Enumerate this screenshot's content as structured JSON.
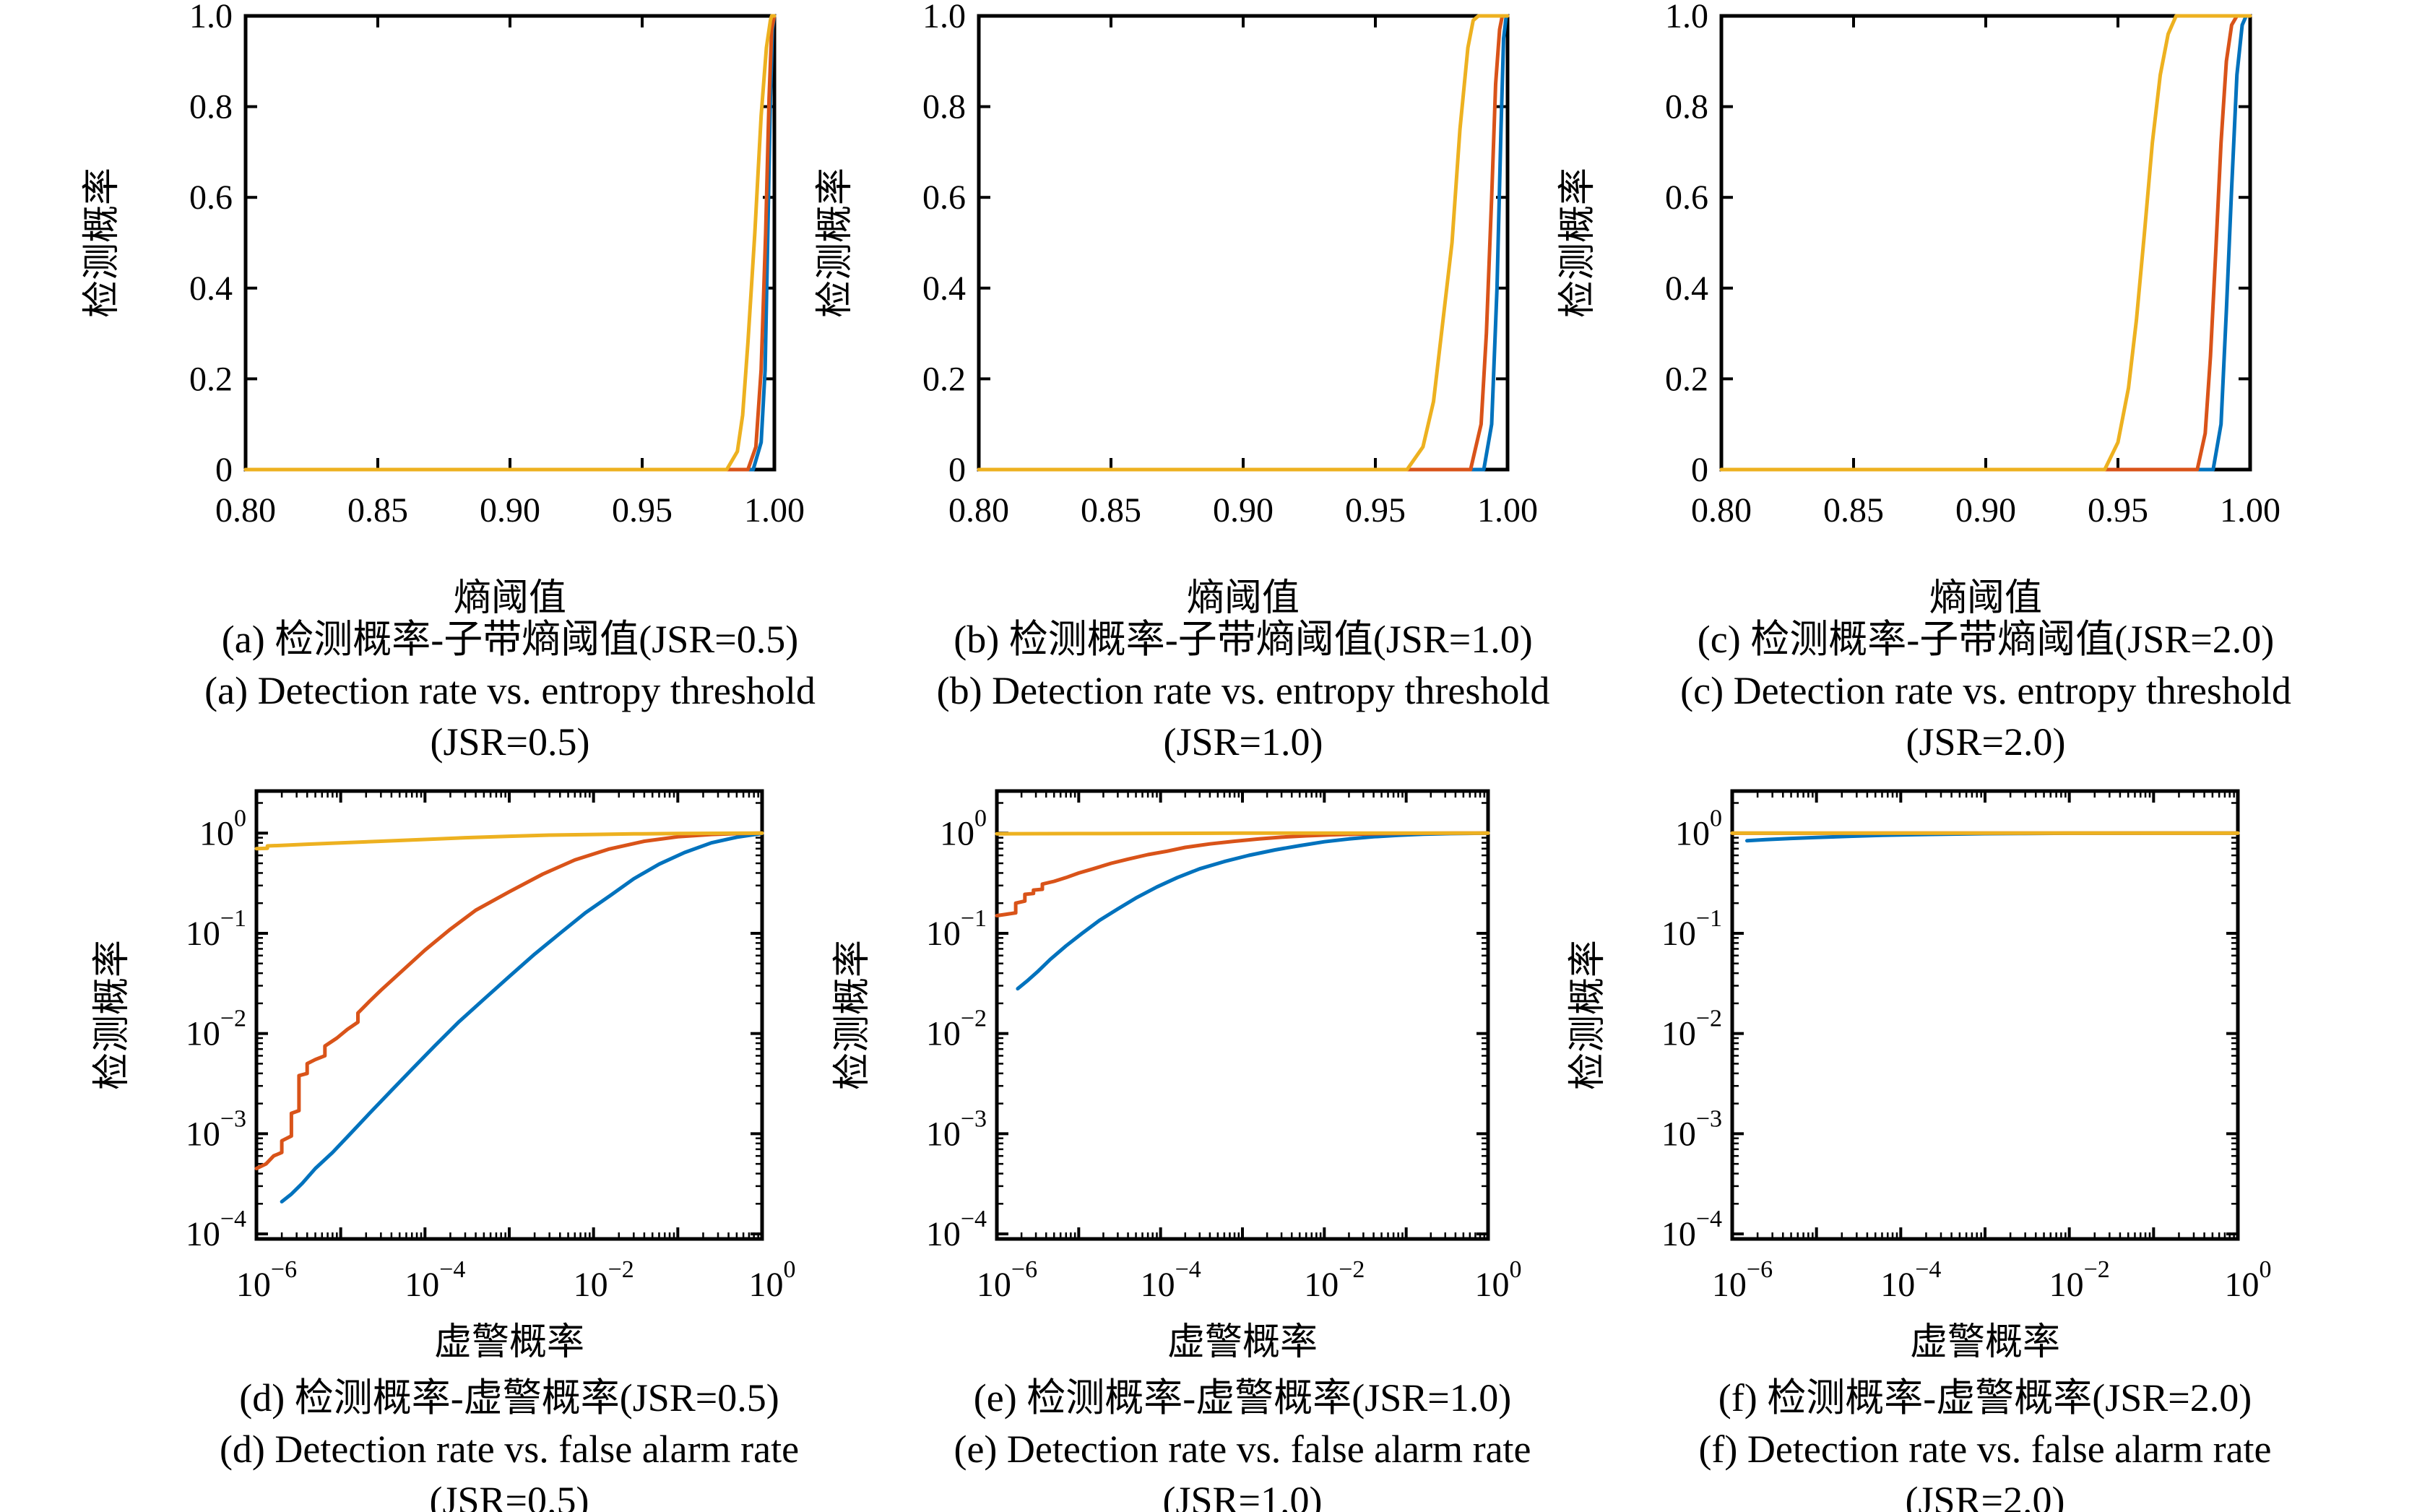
{
  "colors": {
    "series_blue": "#0072BD",
    "series_orange": "#D95319",
    "series_yellow": "#EDB120",
    "axis": "#000000",
    "background": "#ffffff"
  },
  "ylabel_shared": "检测概率",
  "chart_data": [
    {
      "id": "a",
      "type": "line",
      "xscale": "linear",
      "yscale": "linear",
      "title": "",
      "xlabel": "熵阈值",
      "ylabel": "检测概率",
      "xlim": [
        0.8,
        1.0
      ],
      "ylim": [
        0,
        1
      ],
      "xtick_labels": [
        "0.80",
        "0.85",
        "0.90",
        "0.95",
        "1.00"
      ],
      "xtick_values": [
        0.8,
        0.85,
        0.9,
        0.95,
        1.0
      ],
      "ytick_labels": [
        "0",
        "0.2",
        "0.4",
        "0.6",
        "0.8",
        "1.0"
      ],
      "ytick_values": [
        0,
        0.2,
        0.4,
        0.6,
        0.8,
        1.0
      ],
      "grid": false,
      "legend": "none",
      "caption_zh": "(a) 检测概率-子带熵阈值(JSR=0.5)",
      "caption_en": "(a) Detection rate vs. entropy threshold",
      "caption_jsr": "(JSR=0.5)",
      "series": [
        {
          "name": "series-blue",
          "color": "#0072BD",
          "x": [
            0.8,
            0.992,
            0.995,
            0.9965,
            0.9975,
            0.9985,
            0.9993,
            1.0
          ],
          "y": [
            0,
            0,
            0.06,
            0.22,
            0.52,
            0.82,
            0.97,
            1.0
          ]
        },
        {
          "name": "series-orange",
          "color": "#D95319",
          "x": [
            0.8,
            0.99,
            0.993,
            0.995,
            0.9967,
            0.998,
            0.999,
            1.0
          ],
          "y": [
            0,
            0,
            0.05,
            0.22,
            0.52,
            0.82,
            0.97,
            1.0
          ]
        },
        {
          "name": "series-yellow",
          "color": "#EDB120",
          "x": [
            0.8,
            0.982,
            0.986,
            0.988,
            0.99,
            0.9926,
            0.995,
            0.997,
            0.9985,
            0.999,
            1.0
          ],
          "y": [
            0,
            0,
            0.04,
            0.12,
            0.28,
            0.52,
            0.78,
            0.93,
            0.99,
            1.0,
            1.0
          ]
        }
      ]
    },
    {
      "id": "b",
      "type": "line",
      "xscale": "linear",
      "yscale": "linear",
      "title": "",
      "xlabel": "熵阈值",
      "ylabel": "检测概率",
      "xlim": [
        0.8,
        1.0
      ],
      "ylim": [
        0,
        1
      ],
      "xtick_labels": [
        "0.80",
        "0.85",
        "0.90",
        "0.95",
        "1.00"
      ],
      "xtick_values": [
        0.8,
        0.85,
        0.9,
        0.95,
        1.0
      ],
      "ytick_labels": [
        "0",
        "0.2",
        "0.4",
        "0.6",
        "0.8",
        "1.0"
      ],
      "ytick_values": [
        0,
        0.2,
        0.4,
        0.6,
        0.8,
        1.0
      ],
      "grid": false,
      "legend": "none",
      "caption_zh": "(b) 检测概率-子带熵阈值(JSR=1.0)",
      "caption_en": "(b) Detection rate vs. entropy threshold",
      "caption_jsr": "(JSR=1.0)",
      "series": [
        {
          "name": "series-blue",
          "color": "#0072BD",
          "x": [
            0.8,
            0.991,
            0.994,
            0.996,
            0.9975,
            0.9985,
            0.9995,
            1.0
          ],
          "y": [
            0,
            0,
            0.1,
            0.4,
            0.75,
            0.95,
            1.0,
            1.0
          ]
        },
        {
          "name": "series-orange",
          "color": "#D95319",
          "x": [
            0.8,
            0.986,
            0.99,
            0.992,
            0.994,
            0.9955,
            0.997,
            0.998,
            1.0
          ],
          "y": [
            0,
            0,
            0.1,
            0.3,
            0.6,
            0.85,
            0.97,
            1.0,
            1.0
          ]
        },
        {
          "name": "series-yellow",
          "color": "#EDB120",
          "x": [
            0.8,
            0.962,
            0.968,
            0.972,
            0.975,
            0.979,
            0.982,
            0.985,
            0.987,
            0.989,
            1.0
          ],
          "y": [
            0,
            0,
            0.05,
            0.15,
            0.3,
            0.5,
            0.75,
            0.93,
            0.99,
            1.0,
            1.0
          ]
        }
      ]
    },
    {
      "id": "c",
      "type": "line",
      "xscale": "linear",
      "yscale": "linear",
      "title": "",
      "xlabel": "熵阈值",
      "ylabel": "检测概率",
      "xlim": [
        0.8,
        1.0
      ],
      "ylim": [
        0,
        1
      ],
      "xtick_labels": [
        "0.80",
        "0.85",
        "0.90",
        "0.95",
        "1.00"
      ],
      "xtick_values": [
        0.8,
        0.85,
        0.9,
        0.95,
        1.0
      ],
      "ytick_labels": [
        "0",
        "0.2",
        "0.4",
        "0.6",
        "0.8",
        "1.0"
      ],
      "ytick_values": [
        0,
        0.2,
        0.4,
        0.6,
        0.8,
        1.0
      ],
      "grid": false,
      "legend": "none",
      "caption_zh": "(c) 检测概率-子带熵阈值(JSR=2.0)",
      "caption_en": "(c) Detection rate vs. entropy threshold",
      "caption_jsr": "(JSR=2.0)",
      "series": [
        {
          "name": "series-blue",
          "color": "#0072BD",
          "x": [
            0.8,
            0.986,
            0.989,
            0.991,
            0.993,
            0.995,
            0.997,
            0.9985,
            1.0
          ],
          "y": [
            0,
            0,
            0.1,
            0.35,
            0.62,
            0.87,
            0.98,
            1.0,
            1.0
          ]
        },
        {
          "name": "series-orange",
          "color": "#D95319",
          "x": [
            0.8,
            0.98,
            0.983,
            0.985,
            0.987,
            0.989,
            0.991,
            0.993,
            0.995,
            1.0
          ],
          "y": [
            0,
            0,
            0.08,
            0.25,
            0.48,
            0.72,
            0.9,
            0.98,
            1.0,
            1.0
          ]
        },
        {
          "name": "series-yellow",
          "color": "#EDB120",
          "x": [
            0.8,
            0.945,
            0.95,
            0.954,
            0.957,
            0.96,
            0.963,
            0.966,
            0.969,
            0.972,
            1.0
          ],
          "y": [
            0,
            0,
            0.06,
            0.18,
            0.33,
            0.52,
            0.72,
            0.87,
            0.96,
            1.0,
            1.0
          ]
        }
      ]
    },
    {
      "id": "d",
      "type": "line",
      "xscale": "log",
      "yscale": "log",
      "title": "",
      "xlabel": "虚警概率",
      "ylabel": "检测概率",
      "xlim": [
        1e-06,
        1
      ],
      "ylim": [
        0.0001,
        1
      ],
      "xlim_log": [
        -6,
        0
      ],
      "ylim_log": [
        -4.05,
        0.42
      ],
      "xtick_exponents": [
        -6,
        -4,
        -2,
        0
      ],
      "ytick_exponents": [
        0,
        -1,
        -2,
        -3,
        -4
      ],
      "grid": false,
      "legend": "none",
      "caption_zh": "(d) 检测概率-虚警概率(JSR=0.5)",
      "caption_en": "(d) Detection rate vs. false alarm rate",
      "caption_jsr": "(JSR=0.5)",
      "series": [
        {
          "name": "series-blue",
          "color": "#0072BD",
          "x": [
            2e-06,
            2.6e-06,
            3.5e-06,
            5e-06,
            8e-06,
            1.3e-05,
            2.2e-05,
            4e-05,
            7e-05,
            0.00013,
            0.00025,
            0.0005,
            0.001,
            0.002,
            0.004,
            0.008,
            0.016,
            0.03,
            0.06,
            0.12,
            0.25,
            0.5,
            1
          ],
          "y": [
            0.00021,
            0.00025,
            0.00032,
            0.00045,
            0.00065,
            0.001,
            0.0016,
            0.0027,
            0.0044,
            0.0075,
            0.013,
            0.022,
            0.037,
            0.062,
            0.1,
            0.16,
            0.24,
            0.35,
            0.49,
            0.64,
            0.8,
            0.91,
            0.995
          ]
        },
        {
          "name": "series-orange",
          "color": "#D95319",
          "x": [
            1e-06,
            1.3e-06,
            1.6e-06,
            2e-06,
            2e-06,
            2.6e-06,
            2.6e-06,
            3.2e-06,
            3.2e-06,
            4e-06,
            4e-06,
            5e-06,
            6.5e-06,
            6.5e-06,
            9e-06,
            1.2e-05,
            1.6e-05,
            1.6e-05,
            2.2e-05,
            3e-05,
            5e-05,
            0.0001,
            0.0002,
            0.0004,
            0.001,
            0.0025,
            0.006,
            0.015,
            0.04,
            0.1,
            0.25,
            0.5,
            1
          ],
          "y": [
            0.00045,
            0.0005,
            0.0006,
            0.00065,
            0.00085,
            0.00095,
            0.0016,
            0.0017,
            0.0038,
            0.004,
            0.005,
            0.0055,
            0.006,
            0.0075,
            0.009,
            0.011,
            0.013,
            0.016,
            0.021,
            0.027,
            0.04,
            0.068,
            0.11,
            0.17,
            0.26,
            0.39,
            0.54,
            0.69,
            0.83,
            0.92,
            0.97,
            0.99,
            1.0
          ]
        },
        {
          "name": "series-yellow",
          "color": "#EDB120",
          "x": [
            1e-06,
            1.35e-06,
            1.35e-06,
            2e-06,
            4e-06,
            1e-05,
            3e-05,
            0.0001,
            0.0003,
            0.001,
            0.003,
            0.01,
            0.03,
            0.1,
            0.3,
            1
          ],
          "y": [
            0.7,
            0.705,
            0.745,
            0.755,
            0.775,
            0.8,
            0.83,
            0.865,
            0.9,
            0.93,
            0.955,
            0.97,
            0.983,
            0.991,
            0.996,
            1.0
          ]
        }
      ]
    },
    {
      "id": "e",
      "type": "line",
      "xscale": "log",
      "yscale": "log",
      "title": "",
      "xlabel": "虚警概率",
      "ylabel": "检测概率",
      "xlim": [
        1e-06,
        1
      ],
      "ylim": [
        0.0001,
        1
      ],
      "xlim_log": [
        -6,
        0
      ],
      "ylim_log": [
        -4.05,
        0.42
      ],
      "xtick_exponents": [
        -6,
        -4,
        -2,
        0
      ],
      "ytick_exponents": [
        0,
        -1,
        -2,
        -3,
        -4
      ],
      "grid": false,
      "legend": "none",
      "caption_zh": "(e) 检测概率-虚警概率(JSR=1.0)",
      "caption_en": "(e) Detection rate vs. false alarm rate",
      "caption_jsr": "(JSR=1.0)",
      "series": [
        {
          "name": "series-blue",
          "color": "#0072BD",
          "x": [
            1.8e-06,
            2.4e-06,
            3.2e-06,
            4.5e-06,
            7e-06,
            1.1e-05,
            1.8e-05,
            3e-05,
            5e-05,
            9e-05,
            0.00016,
            0.0003,
            0.0006,
            0.0012,
            0.0025,
            0.005,
            0.01,
            0.02,
            0.04,
            0.08,
            0.16,
            0.35,
            1
          ],
          "y": [
            0.028,
            0.034,
            0.042,
            0.055,
            0.075,
            0.1,
            0.135,
            0.175,
            0.225,
            0.29,
            0.36,
            0.44,
            0.52,
            0.6,
            0.68,
            0.75,
            0.82,
            0.875,
            0.92,
            0.95,
            0.975,
            0.99,
            1.0
          ]
        },
        {
          "name": "series-orange",
          "color": "#D95319",
          "x": [
            1e-06,
            1.3e-06,
            1.7e-06,
            1.7e-06,
            2.2e-06,
            2.2e-06,
            2.8e-06,
            2.8e-06,
            3.6e-06,
            3.6e-06,
            5e-06,
            7e-06,
            1e-05,
            1.5e-05,
            2.5e-05,
            4e-05,
            7e-05,
            0.00012,
            0.0002,
            0.0004,
            0.0008,
            0.0016,
            0.003,
            0.006,
            0.012,
            0.025,
            0.06,
            0.15,
            0.4,
            1
          ],
          "y": [
            0.15,
            0.155,
            0.16,
            0.2,
            0.21,
            0.245,
            0.25,
            0.27,
            0.275,
            0.31,
            0.33,
            0.36,
            0.4,
            0.44,
            0.5,
            0.55,
            0.61,
            0.66,
            0.72,
            0.78,
            0.83,
            0.875,
            0.91,
            0.94,
            0.962,
            0.978,
            0.99,
            0.996,
            0.999,
            1.0
          ]
        },
        {
          "name": "series-yellow",
          "color": "#EDB120",
          "x": [
            1e-06,
            1e-05,
            0.0001,
            0.001,
            0.01,
            0.1,
            1
          ],
          "y": [
            0.985,
            0.99,
            0.995,
            1,
            1,
            1,
            1
          ]
        }
      ]
    },
    {
      "id": "f",
      "type": "line",
      "xscale": "log",
      "yscale": "log",
      "title": "",
      "xlabel": "虚警概率",
      "ylabel": "检测概率",
      "xlim": [
        1e-06,
        1
      ],
      "ylim": [
        0.0001,
        1
      ],
      "xlim_log": [
        -6,
        0
      ],
      "ylim_log": [
        -4.05,
        0.42
      ],
      "xtick_exponents": [
        -6,
        -4,
        -2,
        0
      ],
      "ytick_exponents": [
        0,
        -1,
        -2,
        -3,
        -4
      ],
      "grid": false,
      "legend": "none",
      "caption_zh": "(f) 检测概率-虚警概率(JSR=2.0)",
      "caption_en": "(f) Detection rate vs. false alarm rate",
      "caption_jsr": "(JSR=2.0)",
      "series": [
        {
          "name": "series-blue",
          "color": "#0072BD",
          "x": [
            1.5e-06,
            2.5e-06,
            5e-06,
            1e-05,
            2.5e-05,
            6e-05,
            0.00015,
            0.0004,
            0.001,
            0.003,
            0.01,
            0.1,
            1
          ],
          "y": [
            0.84,
            0.86,
            0.885,
            0.905,
            0.93,
            0.95,
            0.965,
            0.978,
            0.987,
            0.993,
            0.997,
            1.0,
            1.0
          ]
        },
        {
          "name": "series-orange",
          "color": "#D95319",
          "x": [
            1e-06,
            0.0001,
            0.01,
            1
          ],
          "y": [
            0.997,
            0.999,
            1,
            1
          ]
        },
        {
          "name": "series-yellow",
          "color": "#EDB120",
          "x": [
            1e-06,
            0.001,
            1
          ],
          "y": [
            1,
            1,
            1
          ]
        }
      ]
    }
  ]
}
